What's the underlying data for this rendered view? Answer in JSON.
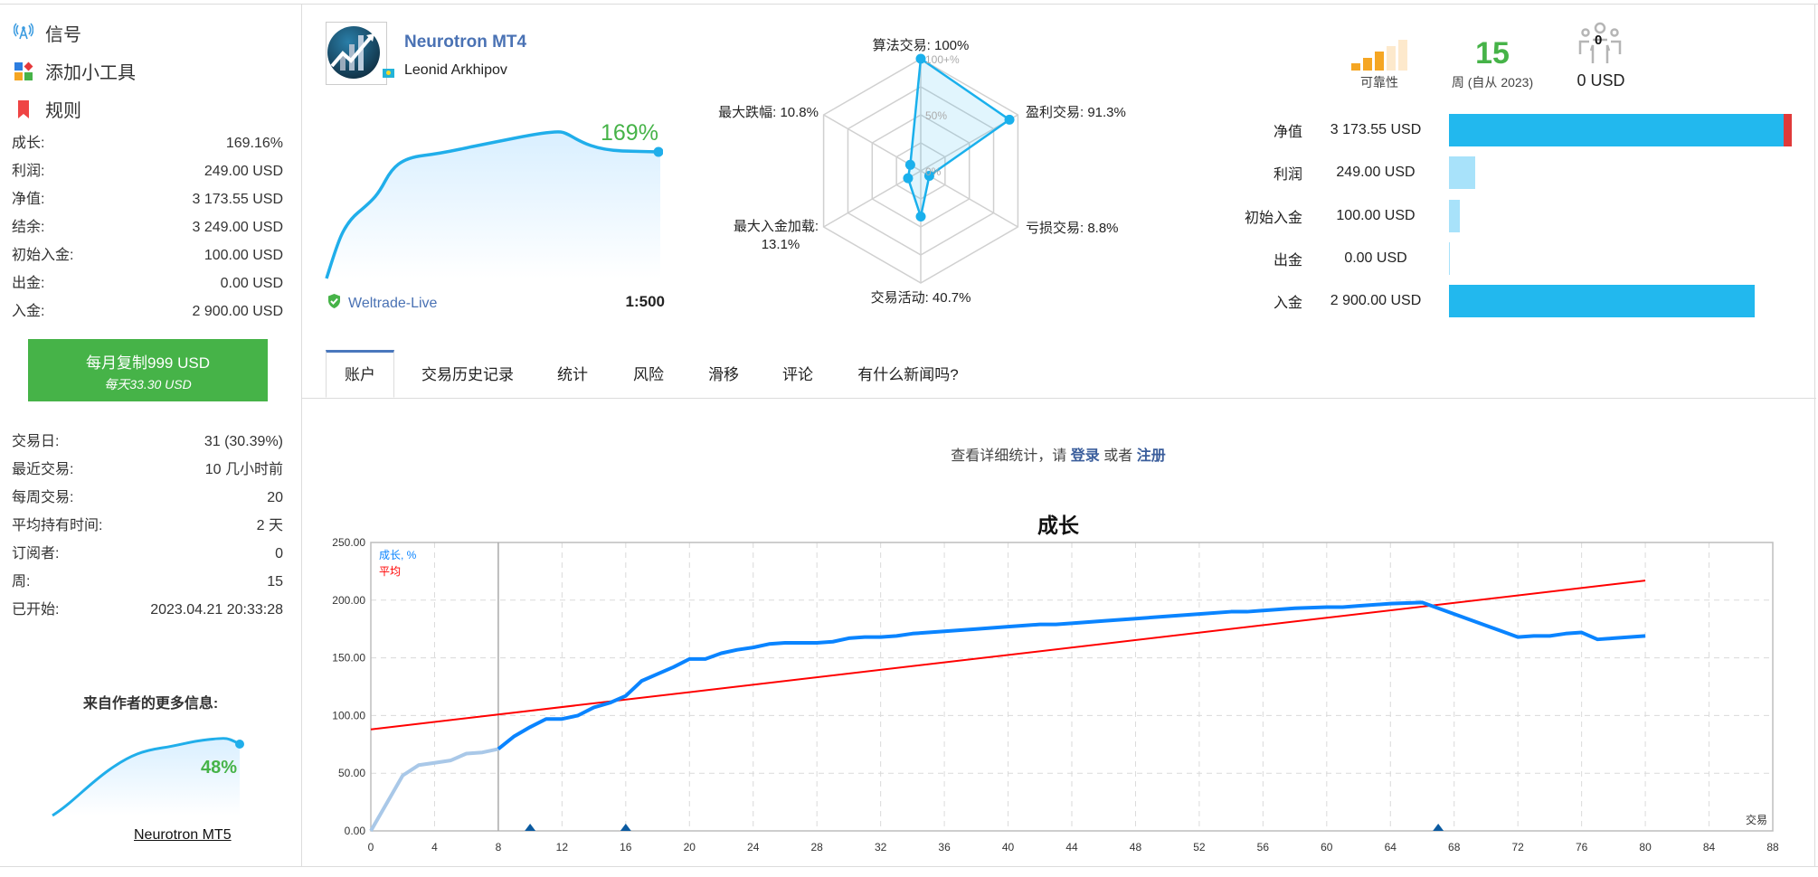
{
  "sidebar": {
    "nav": [
      {
        "label": "信号",
        "icon": "signal-antenna-icon"
      },
      {
        "label": "添加小工具",
        "icon": "widgets-icon"
      },
      {
        "label": "规则",
        "icon": "bookmark-icon"
      }
    ],
    "stats": [
      {
        "label": "成长:",
        "value": "169.16%"
      },
      {
        "label": "利润:",
        "value": "249.00 USD"
      },
      {
        "label": "净值:",
        "value": "3 173.55 USD"
      },
      {
        "label": "结余:",
        "value": "3 249.00 USD"
      },
      {
        "label": "初始入金:",
        "value": "100.00 USD"
      },
      {
        "label": "出金:",
        "value": "0.00 USD"
      },
      {
        "label": "入金:",
        "value": "2 900.00 USD"
      }
    ],
    "copy_button": {
      "line1": "每月复制999 USD",
      "line2": "每天33.30 USD"
    },
    "stats2": [
      {
        "label": "交易日:",
        "value": "31 (30.39%)"
      },
      {
        "label": "最近交易:",
        "value": "10 几小时前"
      },
      {
        "label": "每周交易:",
        "value": "20"
      },
      {
        "label": "平均持有时间:",
        "value": "2 天"
      },
      {
        "label": "订阅者:",
        "value": "0"
      },
      {
        "label": "周:",
        "value": "15"
      },
      {
        "label": "已开始:",
        "value": "2023.04.21 20:33:28"
      }
    ],
    "more_title": "来自作者的更多信息:",
    "more_growth": "48%",
    "more_link": "Neurotron MT5"
  },
  "signal": {
    "name": "Neurotron MT4",
    "author": "Leonid Arkhipov",
    "growth": "169%",
    "broker": "Weltrade-Live",
    "leverage": "1:500"
  },
  "radar": {
    "ring_labels": [
      "100+%",
      "50%",
      "0%"
    ],
    "axes": [
      {
        "label": "算法交易: 100%",
        "value": 100
      },
      {
        "label": "盈利交易: 91.3%",
        "value": 91.3
      },
      {
        "label": "亏损交易: 8.8%",
        "value": 8.8
      },
      {
        "label": "交易活动: 40.7%",
        "value": 40.7
      },
      {
        "label_line1": "最大入金加载:",
        "label_line2": "13.1%",
        "value": 13.1
      },
      {
        "label": "最大跌幅: 10.8%",
        "value": 10.8
      }
    ],
    "color": "#1ab0ec"
  },
  "summary": {
    "reliability_label": "可靠性",
    "reliability_level": 3,
    "reliability_max": 5,
    "weeks": "15",
    "weeks_label": "周 (自从 2023)",
    "subscribers_count": "0",
    "subscribers_funds": "0 USD"
  },
  "equity_bars": [
    {
      "label": "净值",
      "value": "3 173.55 USD",
      "amount": 3173.55,
      "color": "#22b8ee"
    },
    {
      "label": "利润",
      "value": "249.00 USD",
      "amount": 249,
      "color": "#a8e2fa"
    },
    {
      "label": "初始入金",
      "value": "100.00 USD",
      "amount": 100,
      "color": "#a8e2fa"
    },
    {
      "label": "出金",
      "value": "0.00 USD",
      "amount": 0,
      "color": "#a8e2fa"
    },
    {
      "label": "入金",
      "value": "2 900.00 USD",
      "amount": 2900,
      "color": "#22b8ee"
    }
  ],
  "equity_scale_max": 3249,
  "equity_loss_color": "#e03a3a",
  "tabs": [
    {
      "label": "账户",
      "active": true
    },
    {
      "label": "交易历史记录"
    },
    {
      "label": "统计"
    },
    {
      "label": "风险"
    },
    {
      "label": "滑移"
    },
    {
      "label": "评论"
    },
    {
      "label": "有什么新闻吗?"
    }
  ],
  "login_prompt": {
    "text": "查看详细统计，请",
    "login": "登录",
    "or": "或者",
    "register": "注册"
  },
  "chart_data": {
    "type": "line",
    "title": "成长",
    "xlabel": "交易",
    "xlim": [
      0,
      88
    ],
    "ylim": [
      0,
      250
    ],
    "xticks": [
      0,
      4,
      8,
      12,
      16,
      20,
      24,
      28,
      32,
      36,
      40,
      44,
      48,
      52,
      56,
      60,
      64,
      68,
      72,
      76,
      80,
      84,
      88
    ],
    "yticks": [
      "0.00",
      "50.00",
      "100.00",
      "150.00",
      "200.00",
      "250.00"
    ],
    "grid": true,
    "legend_placement": "top-left",
    "series": [
      {
        "name": "成长, %",
        "color": "#0a84ff",
        "faded_color": "#a9c8e8",
        "faded_until_x": 8,
        "x": [
          0,
          1,
          2,
          3,
          4,
          5,
          6,
          7,
          8,
          9,
          10,
          11,
          12,
          13,
          14,
          15,
          16,
          17,
          18,
          19,
          20,
          21,
          22,
          23,
          24,
          25,
          26,
          27,
          28,
          29,
          30,
          31,
          32,
          33,
          34,
          35,
          36,
          38,
          40,
          42,
          43,
          44,
          46,
          48,
          50,
          52,
          54,
          55,
          56,
          58,
          60,
          61,
          62,
          64,
          66,
          68,
          70,
          72,
          73,
          74,
          75,
          76,
          77,
          78,
          80
        ],
        "y": [
          0,
          24,
          48,
          57,
          59,
          61,
          67,
          68,
          71,
          82,
          90,
          97,
          97,
          100,
          107,
          111,
          117,
          130,
          136,
          142,
          149,
          149,
          154,
          157,
          159,
          162,
          163,
          163,
          163,
          164,
          167,
          168,
          168,
          169,
          171,
          172,
          173,
          175,
          177,
          179,
          179,
          180,
          182,
          184,
          186,
          188,
          190,
          190,
          191,
          193,
          194,
          194,
          195,
          197,
          198,
          188,
          178,
          168,
          169,
          169,
          171,
          172,
          166,
          167,
          169
        ]
      },
      {
        "name": "平均",
        "color": "#ff0000",
        "x": [
          0,
          80
        ],
        "y": [
          88,
          217
        ]
      }
    ],
    "markers_x": [
      10,
      16,
      67
    ],
    "marker_color": "#0b5aa0",
    "vertical_line_x": 8
  }
}
